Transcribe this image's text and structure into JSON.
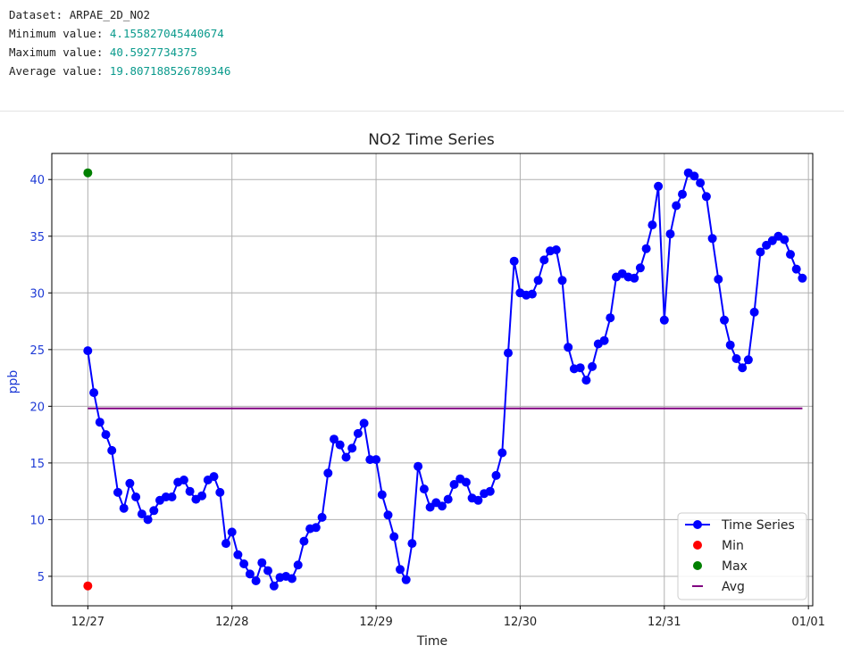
{
  "output": {
    "dataset_label": "Dataset: ARPAE_2D_NO2",
    "min_label": "Minimum value: ",
    "min_value": "4.155827045440674",
    "max_label": "Maximum value: ",
    "max_value": "40.5927734375",
    "avg_label": "Average value: ",
    "avg_value": "19.807188526789346"
  },
  "chart_data": {
    "type": "line",
    "title": "NO2 Time Series",
    "xlabel": "Time",
    "ylabel": "ppb",
    "x_ticks": [
      "12/27",
      "12/28",
      "12/29",
      "12/30",
      "12/31",
      "01/01"
    ],
    "y_ticks": [
      5,
      10,
      15,
      20,
      25,
      30,
      35,
      40
    ],
    "xlim": [
      -0.25,
      5.03
    ],
    "ylim": [
      2.4,
      42.3
    ],
    "grid": true,
    "legend_position": "lower-right",
    "series": [
      {
        "name": "Time Series",
        "color": "#0000ff",
        "x": [
          0,
          0.0417,
          0.0833,
          0.125,
          0.1667,
          0.2083,
          0.25,
          0.2917,
          0.3333,
          0.375,
          0.4167,
          0.4583,
          0.5,
          0.5417,
          0.5833,
          0.625,
          0.6667,
          0.7083,
          0.75,
          0.7917,
          0.8333,
          0.875,
          0.9167,
          0.9583,
          1,
          1.0417,
          1.0833,
          1.125,
          1.1667,
          1.2083,
          1.25,
          1.2917,
          1.3333,
          1.375,
          1.4167,
          1.4583,
          1.5,
          1.5417,
          1.5833,
          1.625,
          1.6667,
          1.7083,
          1.75,
          1.7917,
          1.8333,
          1.875,
          1.9167,
          1.9583,
          2,
          2.0417,
          2.0833,
          2.125,
          2.1667,
          2.2083,
          2.25,
          2.2917,
          2.3333,
          2.375,
          2.4167,
          2.4583,
          2.5,
          2.5417,
          2.5833,
          2.625,
          2.6667,
          2.7083,
          2.75,
          2.7917,
          2.8333,
          2.875,
          2.9167,
          2.9583,
          3,
          3.0417,
          3.0833,
          3.125,
          3.1667,
          3.2083,
          3.25,
          3.2917,
          3.3333,
          3.375,
          3.4167,
          3.4583,
          3.5,
          3.5417,
          3.5833,
          3.625,
          3.6667,
          3.7083,
          3.75,
          3.7917,
          3.8333,
          3.875,
          3.9167,
          3.9583,
          4,
          4.0417,
          4.0833,
          4.125,
          4.1667,
          4.2083,
          4.25,
          4.2917,
          4.3333,
          4.375,
          4.4167,
          4.4583,
          4.5,
          4.5417,
          4.5833,
          4.625,
          4.6667,
          4.7083,
          4.75,
          4.7917,
          4.8333,
          4.875,
          4.9167,
          4.9583
        ],
        "values": [
          24.9,
          21.2,
          18.6,
          17.5,
          16.1,
          12.4,
          11.0,
          13.2,
          12.0,
          10.5,
          10.0,
          10.8,
          11.7,
          12.0,
          12.0,
          13.3,
          13.5,
          12.5,
          11.8,
          12.1,
          13.5,
          13.8,
          12.4,
          7.9,
          8.9,
          6.9,
          6.1,
          5.2,
          4.6,
          6.2,
          5.5,
          4.15,
          4.9,
          5.0,
          4.8,
          6.0,
          8.1,
          9.2,
          9.3,
          10.2,
          14.1,
          17.1,
          16.6,
          15.5,
          16.3,
          17.6,
          18.5,
          15.3,
          15.3,
          12.2,
          10.4,
          8.5,
          5.6,
          4.7,
          7.9,
          14.7,
          12.7,
          11.1,
          11.5,
          11.2,
          11.8,
          13.1,
          13.6,
          13.3,
          11.9,
          11.7,
          12.3,
          12.5,
          13.9,
          15.9,
          24.7,
          32.8,
          30.0,
          29.8,
          29.9,
          31.1,
          32.9,
          33.7,
          33.8,
          31.1,
          25.2,
          23.3,
          23.4,
          22.3,
          23.5,
          25.5,
          25.8,
          27.8,
          31.4,
          31.7,
          31.4,
          31.3,
          32.2,
          33.9,
          36.0,
          39.4,
          27.6,
          35.2,
          37.7,
          38.7,
          40.59,
          40.3,
          39.7,
          38.5,
          34.8,
          31.2,
          27.6,
          25.4,
          24.2,
          23.4,
          24.1,
          28.3,
          33.6,
          34.2,
          34.6,
          35.0,
          34.7,
          33.4,
          32.1,
          31.3
        ]
      }
    ],
    "markers": [
      {
        "name": "Min",
        "x": 0,
        "value": 4.155827045440674,
        "color": "#ff0000"
      },
      {
        "name": "Max",
        "x": 0,
        "value": 40.5927734375,
        "color": "#008000"
      }
    ],
    "avg_line": {
      "name": "Avg",
      "value": 19.807188526789346,
      "color": "#800080"
    }
  }
}
